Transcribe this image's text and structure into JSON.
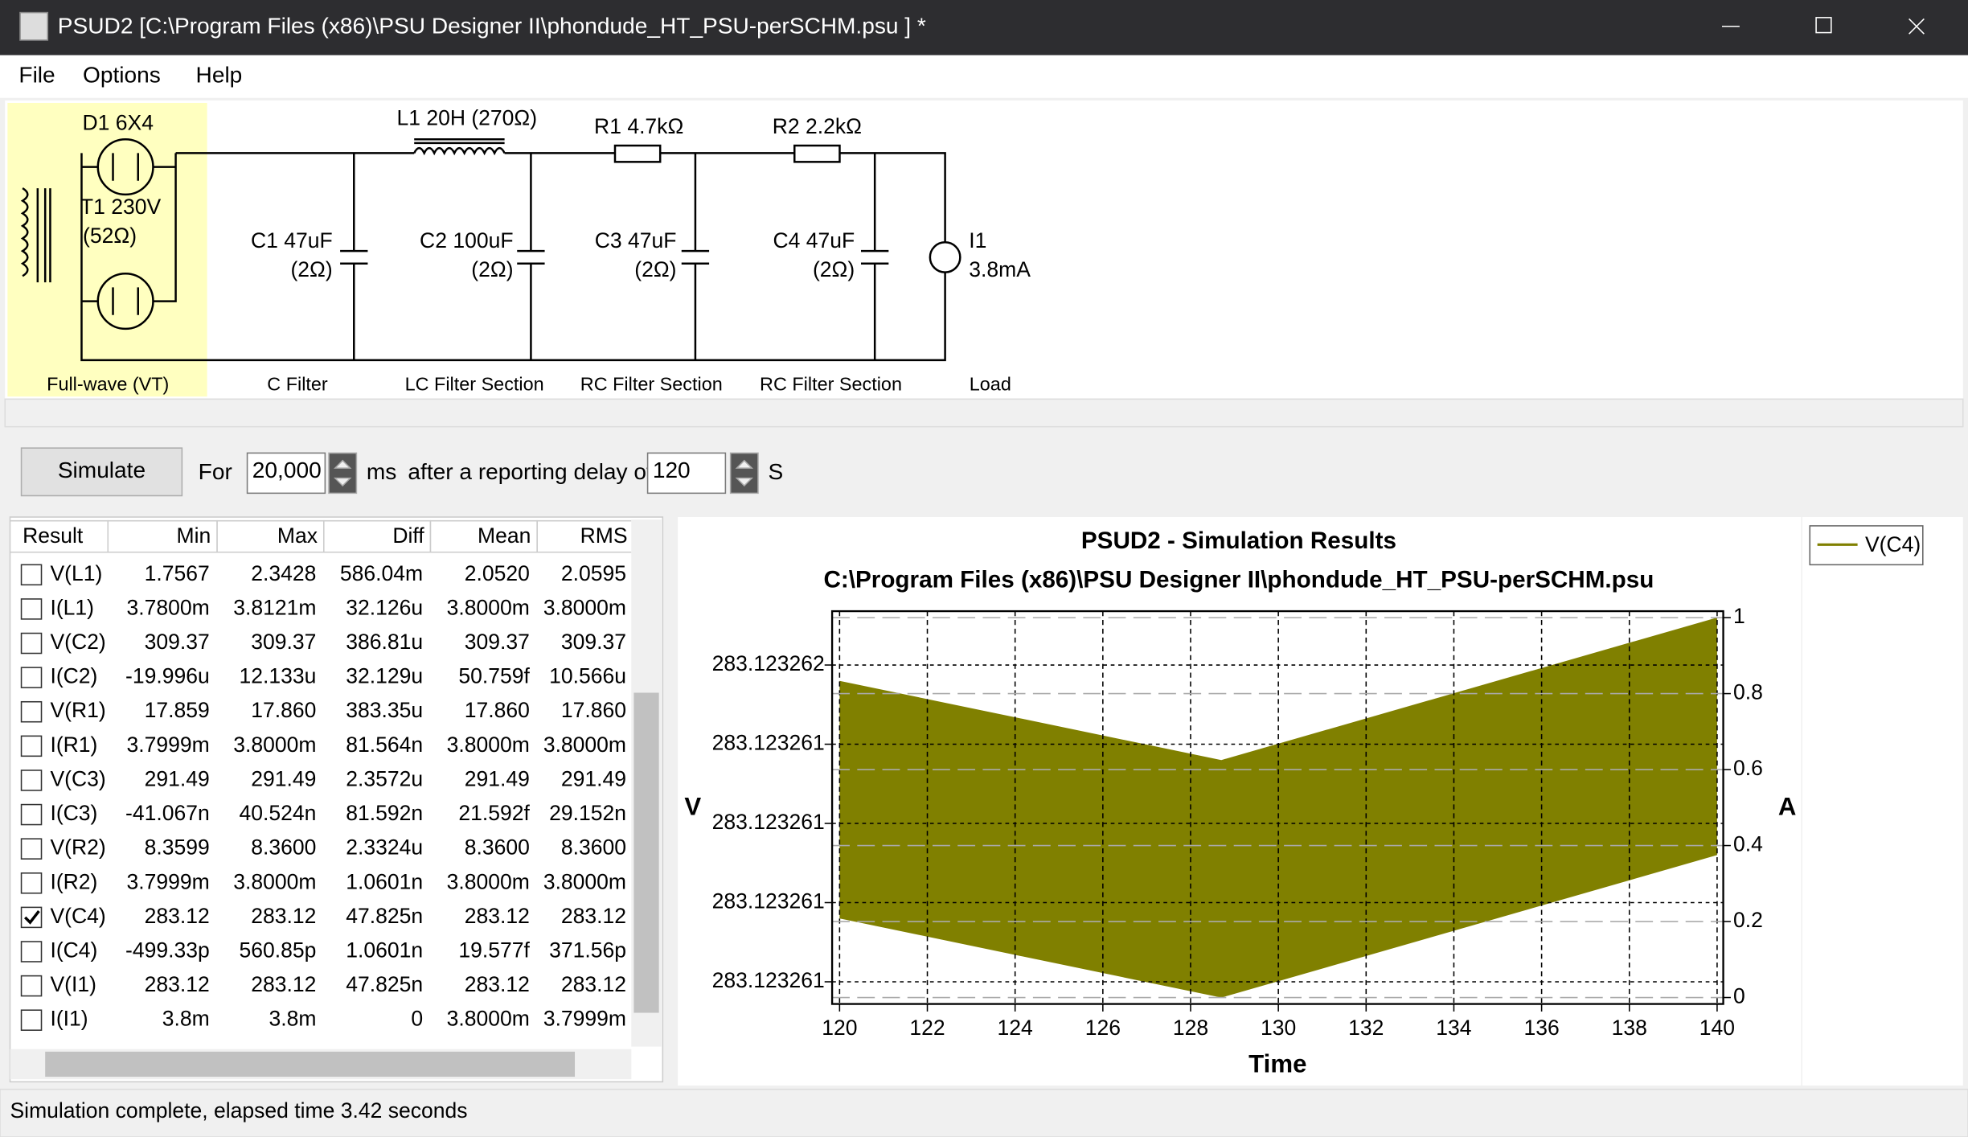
{
  "window": {
    "title": "PSUD2  [C:\\Program Files (x86)\\PSU Designer II\\phondude_HT_PSU-perSCHM.psu ] *"
  },
  "menu": [
    "File",
    "Options",
    "Help"
  ],
  "circuit": {
    "labels": [
      "D1 6X4",
      "T1 230V",
      "(52Ω)",
      "L1 20H (270Ω)",
      "R1 4.7kΩ",
      "R2 2.2kΩ",
      "C1 47uF",
      "(2Ω)",
      "C2 100uF",
      "(2Ω)",
      "C3 47uF",
      "(2Ω)",
      "C4 47uF",
      "(2Ω)",
      "I1",
      "3.8mA"
    ],
    "sections": [
      "Full-wave (VT)",
      "C Filter",
      "LC Filter Section",
      "RC Filter Section",
      "RC Filter Section",
      "Load"
    ]
  },
  "controls": {
    "simulate": "Simulate",
    "for": "For",
    "duration": "20,000",
    "ms": "ms",
    "delay_text": "after a reporting delay of",
    "delay": "120",
    "unit": "S"
  },
  "table": {
    "columns": [
      "Result",
      "Min",
      "Max",
      "Diff",
      "Mean",
      "RMS"
    ],
    "rows": [
      [
        "V(L1)",
        "1.7567",
        "2.3428",
        "586.04m",
        "2.0520",
        "2.0595"
      ],
      [
        "I(L1)",
        "3.7800m",
        "3.8121m",
        "32.126u",
        "3.8000m",
        "3.8000m"
      ],
      [
        "V(C2)",
        "309.37",
        "309.37",
        "386.81u",
        "309.37",
        "309.37"
      ],
      [
        "I(C2)",
        "-19.996u",
        "12.133u",
        "32.129u",
        "50.759f",
        "10.566u"
      ],
      [
        "V(R1)",
        "17.859",
        "17.860",
        "383.35u",
        "17.860",
        "17.860"
      ],
      [
        "I(R1)",
        "3.7999m",
        "3.8000m",
        "81.564n",
        "3.8000m",
        "3.8000m"
      ],
      [
        "V(C3)",
        "291.49",
        "291.49",
        "2.3572u",
        "291.49",
        "291.49"
      ],
      [
        "I(C3)",
        "-41.067n",
        "40.524n",
        "81.592n",
        "21.592f",
        "29.152n"
      ],
      [
        "V(R2)",
        "8.3599",
        "8.3600",
        "2.3324u",
        "8.3600",
        "8.3600"
      ],
      [
        "I(R2)",
        "3.7999m",
        "3.8000m",
        "1.0601n",
        "3.8000m",
        "3.8000m"
      ],
      [
        "V(C4)",
        "283.12",
        "283.12",
        "47.825n",
        "283.12",
        "283.12"
      ],
      [
        "I(C4)",
        "-499.33p",
        "560.85p",
        "1.0601n",
        "19.577f",
        "371.56p"
      ],
      [
        "V(I1)",
        "283.12",
        "283.12",
        "47.825n",
        "283.12",
        "283.12"
      ],
      [
        "I(I1)",
        "3.8m",
        "3.8m",
        "0",
        "3.8000m",
        "3.7999m"
      ]
    ],
    "checked": [
      false,
      false,
      false,
      false,
      false,
      false,
      false,
      false,
      false,
      false,
      true,
      false,
      false,
      false
    ]
  },
  "chart_data": {
    "type": "area",
    "title": "PSUD2 - Simulation Results",
    "subtitle": "C:\\Program Files (x86)\\PSU Designer II\\phondude_HT_PSU-perSCHM.psu",
    "xlabel": "Time",
    "ylabel": "V",
    "y2label": "A",
    "x": [
      120,
      128.7,
      140
    ],
    "series": [
      {
        "name": "V(C4)",
        "color": "#808000",
        "values_max": [
          283.12326155,
          283.1232613,
          283.12326175
        ],
        "values_min": [
          283.1232608,
          283.12326055,
          283.123261
        ]
      }
    ],
    "xlim": [
      119.83,
      140.14
    ],
    "xticks": [
      120,
      122,
      124,
      126,
      128,
      130,
      132,
      134,
      136,
      138,
      140
    ],
    "ylim": [
      283.12326053,
      283.12326177
    ],
    "yticks": [
      {
        "value": 283.1232606,
        "label": "283.123261"
      },
      {
        "value": 283.12326085,
        "label": "283.123261"
      },
      {
        "value": 283.1232611,
        "label": "283.123261"
      },
      {
        "value": 283.12326135,
        "label": "283.123261"
      },
      {
        "value": 283.1232616,
        "label": "283.123262"
      }
    ],
    "y2lim": [
      -0.017,
      1.017
    ],
    "y2ticks": [
      0,
      0.2,
      0.4,
      0.6,
      0.8,
      1
    ],
    "grid": true,
    "legend": "right"
  },
  "status": "Simulation complete, elapsed time 3.42 seconds"
}
